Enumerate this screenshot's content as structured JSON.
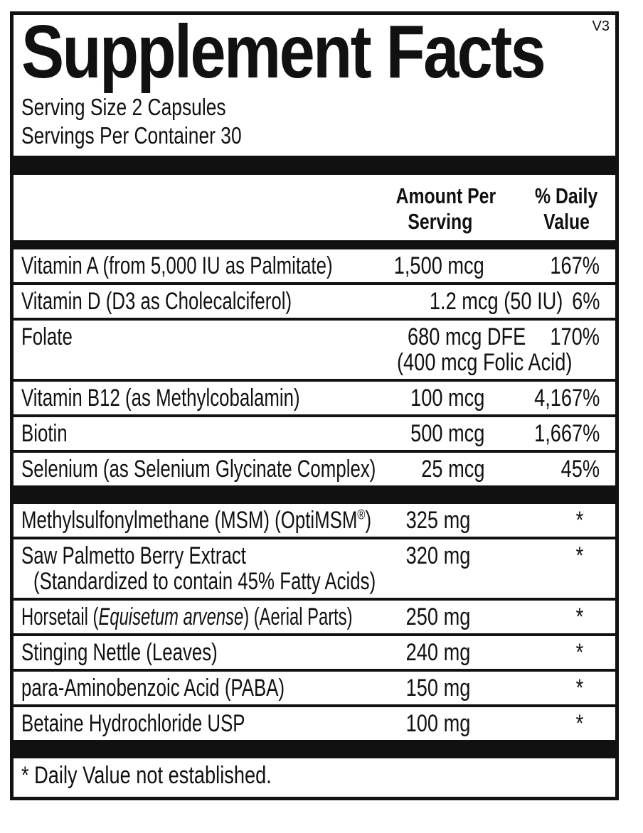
{
  "version_tag": "V3",
  "title": "Supplement Facts",
  "serving": {
    "size": "Serving Size 2 Capsules",
    "per_container": "Servings Per Container 30"
  },
  "columns": {
    "amount": {
      "line1": "Amount Per",
      "line2": "Serving"
    },
    "dv": {
      "line1": "% Daily",
      "line2": "Value"
    }
  },
  "rows": [
    {
      "name": "Vitamin A (from 5,000 IU as Palmitate)",
      "amount": "1,500 mcg",
      "dv": "167%"
    },
    {
      "name": "Vitamin D (D3 as Cholecalciferol)",
      "amount": "1.2 mcg (50 IU)",
      "dv": "6%"
    },
    {
      "name": "Folate",
      "amount": "680 mcg DFE",
      "amount_note": "(400 mcg Folic Acid)",
      "dv": "170%"
    },
    {
      "name": "Vitamin B12 (as Methylcobalamin)",
      "amount": "100 mcg",
      "dv": "4,167%"
    },
    {
      "name": "Biotin",
      "amount": "500 mcg",
      "dv": "1,667%"
    },
    {
      "name": "Selenium (as Selenium Glycinate Complex)",
      "amount": "25 mcg",
      "dv": "45%"
    },
    {
      "name_pre": "Methylsulfonylmethane (MSM) (OptiMSM",
      "name_sup": "®",
      "name_post": ")",
      "amount": "325 mg",
      "dv": "*"
    },
    {
      "name": "Saw Palmetto Berry Extract",
      "name_note": "(Standardized to contain 45% Fatty Acids)",
      "amount": "320 mg",
      "dv": "*"
    },
    {
      "name_pre": "Horsetail (",
      "name_italic": "Equisetum arvense",
      "name_post": ") (Aerial Parts)",
      "amount": "250 mg",
      "dv": "*"
    },
    {
      "name": "Stinging Nettle (Leaves)",
      "amount": "240 mg",
      "dv": "*"
    },
    {
      "name": "para-Aminobenzoic Acid (PABA)",
      "amount": "150 mg",
      "dv": "*"
    },
    {
      "name": "Betaine Hydrochloride USP",
      "amount": "100 mg",
      "dv": "*"
    }
  ],
  "footnote": "* Daily Value not established.",
  "colors": {
    "ink": "#111111",
    "paper": "#ffffff"
  }
}
